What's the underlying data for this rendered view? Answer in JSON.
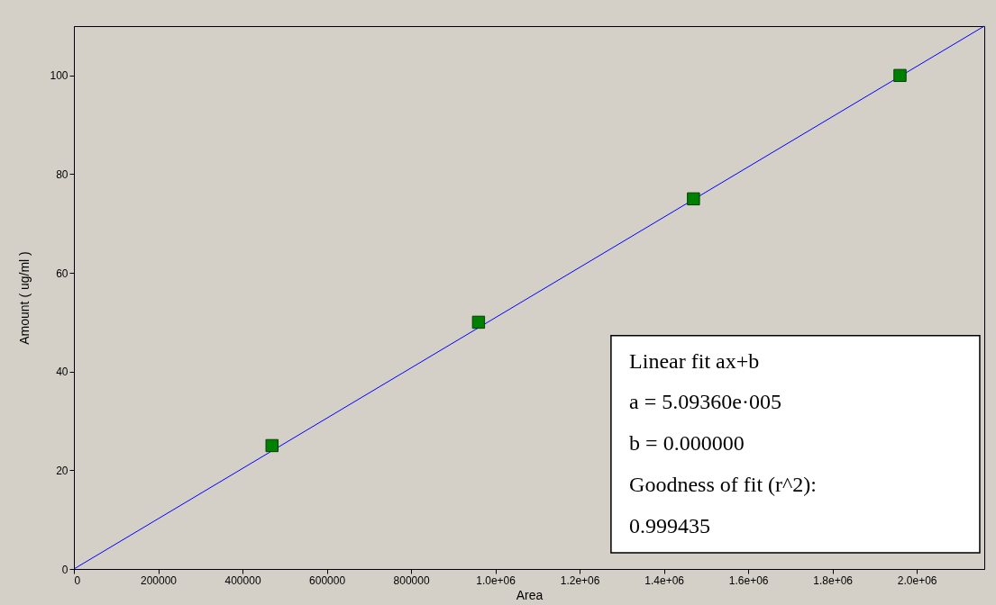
{
  "chart_data": {
    "type": "scatter",
    "xlabel": "Area",
    "ylabel": "Amount ( ug/ml )",
    "xlim": [
      0,
      2160000
    ],
    "ylim": [
      0,
      110
    ],
    "xticks": [
      0,
      200000,
      400000,
      600000,
      800000,
      {
        "value": 1000000,
        "label": "1.0e+06"
      },
      {
        "value": 1200000,
        "label": "1.2e+06"
      },
      {
        "value": 1400000,
        "label": "1.4e+06"
      },
      {
        "value": 1600000,
        "label": "1.6e+06"
      },
      {
        "value": 1800000,
        "label": "1.8e+06"
      },
      {
        "value": 2000000,
        "label": "2.0e+06"
      }
    ],
    "yticks": [
      0,
      20,
      40,
      60,
      80,
      100
    ],
    "grid": false,
    "legend": false,
    "marker": "square",
    "series": [
      {
        "type": "line",
        "color": "#0000ff",
        "marker": "none",
        "x": [
          0,
          2160000
        ],
        "values": [
          0,
          110
        ]
      },
      {
        "color": "#008000",
        "x": [
          470000,
          960000,
          1470000,
          1960000
        ],
        "values": [
          25,
          50,
          75,
          100
        ]
      }
    ],
    "annotations": [
      "Linear fit ax+b",
      "a = 5.09360e·005",
      "b = 0.000000",
      "Goodness of fit (r^2):",
      "0.999435"
    ]
  }
}
